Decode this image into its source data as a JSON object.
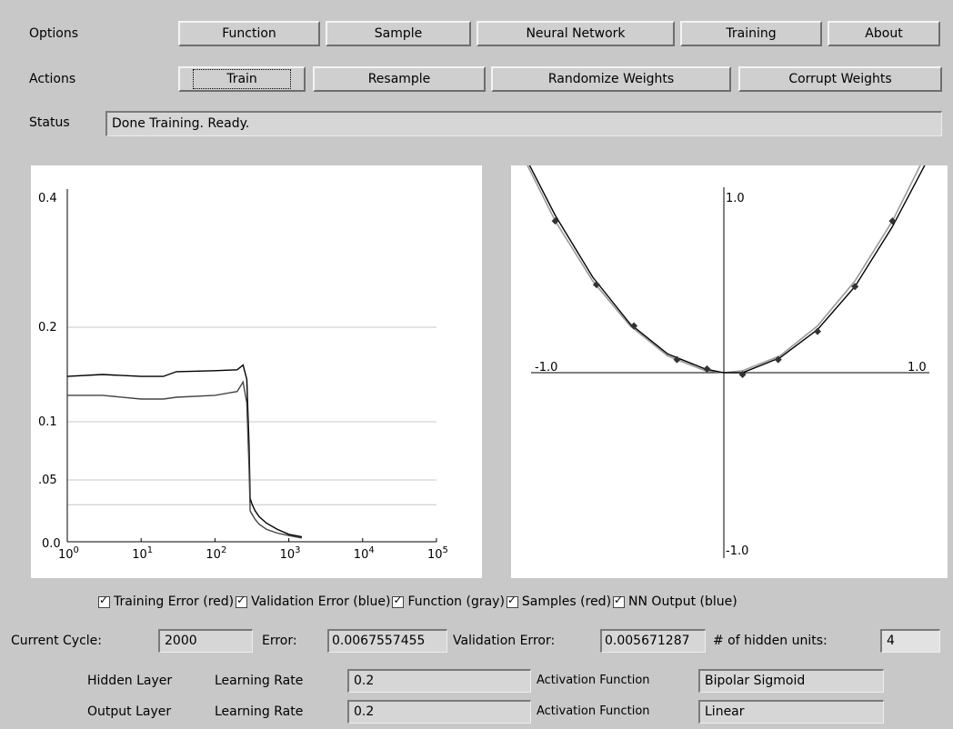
{
  "menu": {
    "label": "Options",
    "items": [
      "Function",
      "Sample",
      "Neural Network",
      "Training",
      "About"
    ]
  },
  "actions": {
    "label": "Actions",
    "items": [
      "Train",
      "Resample",
      "Randomize Weights",
      "Corrupt Weights"
    ]
  },
  "status": {
    "label": "Status",
    "value": "Done Training. Ready."
  },
  "error_plot": {
    "y_ticks": [
      "0.4",
      "0.2",
      "0.1",
      ".05",
      "0.0"
    ],
    "x_ticks": [
      {
        "base": "10",
        "exp": "0"
      },
      {
        "base": "10",
        "exp": "1"
      },
      {
        "base": "10",
        "exp": "2"
      },
      {
        "base": "10",
        "exp": "3"
      },
      {
        "base": "10",
        "exp": "4"
      },
      {
        "base": "10",
        "exp": "5"
      }
    ]
  },
  "function_plot": {
    "axis_labels": {
      "x_min": "-1.0",
      "x_max": "1.0",
      "y_max": "1.0",
      "y_min": "-1.0"
    }
  },
  "chart_data": [
    {
      "type": "line",
      "x_scale": "log",
      "xlim": [
        1,
        100000
      ],
      "ylim": [
        0,
        0.4
      ],
      "y_ticks": [
        0,
        0.05,
        0.1,
        0.2,
        0.4
      ],
      "x_ticks": [
        1,
        10,
        100,
        1000,
        10000,
        100000
      ],
      "grid": true,
      "series": [
        {
          "x": [
            1,
            3,
            10,
            20,
            30,
            100,
            200,
            240,
            270,
            290,
            300,
            320,
            350,
            400,
            500,
            700,
            1000,
            1500
          ],
          "y": [
            0.148,
            0.15,
            0.148,
            0.148,
            0.153,
            0.154,
            0.155,
            0.16,
            0.145,
            0.08,
            0.035,
            0.03,
            0.025,
            0.02,
            0.015,
            0.01,
            0.006,
            0.004
          ]
        },
        {
          "x": [
            1,
            3,
            10,
            20,
            30,
            100,
            200,
            240,
            270,
            290,
            300,
            320,
            350,
            400,
            500,
            700,
            1000,
            1500
          ],
          "y": [
            0.128,
            0.128,
            0.124,
            0.124,
            0.126,
            0.128,
            0.132,
            0.142,
            0.12,
            0.06,
            0.025,
            0.022,
            0.018,
            0.014,
            0.01,
            0.007,
            0.005,
            0.003
          ]
        }
      ]
    },
    {
      "type": "line",
      "xlim": [
        -1,
        1
      ],
      "ylim": [
        -1,
        1
      ],
      "series": [
        {
          "x": [
            -1.1,
            -0.9,
            -0.7,
            -0.5,
            -0.3,
            -0.1,
            0.0,
            0.1,
            0.3,
            0.5,
            0.7,
            0.9,
            1.1
          ],
          "y": [
            1.21,
            0.81,
            0.49,
            0.25,
            0.09,
            0.01,
            0.0,
            0.01,
            0.09,
            0.25,
            0.49,
            0.81,
            1.21
          ]
        },
        {
          "x": [
            -1.1,
            -0.9,
            -0.7,
            -0.5,
            -0.3,
            -0.1,
            0.0,
            0.1,
            0.3,
            0.5,
            0.7,
            0.9,
            1.1
          ],
          "y": [
            1.23,
            0.84,
            0.51,
            0.26,
            0.1,
            0.02,
            0.0,
            0.0,
            0.08,
            0.23,
            0.46,
            0.78,
            1.16
          ]
        },
        {
          "type": "scatter",
          "x": [
            -0.9,
            -0.68,
            -0.48,
            -0.25,
            -0.09,
            0.1,
            0.29,
            0.5,
            0.7,
            0.9
          ],
          "y": [
            0.81,
            0.47,
            0.25,
            0.07,
            0.02,
            -0.01,
            0.07,
            0.22,
            0.46,
            0.81
          ]
        }
      ]
    }
  ],
  "legend": [
    "Training Error (red)",
    "Validation Error (blue)",
    "Function (gray)",
    "Samples (red)",
    "NN Output (blue)"
  ],
  "stats": {
    "cycle_label": "Current Cycle:",
    "cycle_value": "2000",
    "error_label": "Error:",
    "error_value": "0.0067557455",
    "val_label": "Validation Error:",
    "val_value": "0.005671287",
    "hidden_label": "# of hidden units:",
    "hidden_value": "4"
  },
  "layers": [
    {
      "name": "Hidden Layer",
      "lr_label": "Learning Rate",
      "lr_value": "0.2",
      "af_label": "Activation Function",
      "af_value": "Bipolar Sigmoid"
    },
    {
      "name": "Output Layer",
      "lr_label": "Learning Rate",
      "lr_value": "0.2",
      "af_label": "Activation Function",
      "af_value": "Linear"
    }
  ]
}
